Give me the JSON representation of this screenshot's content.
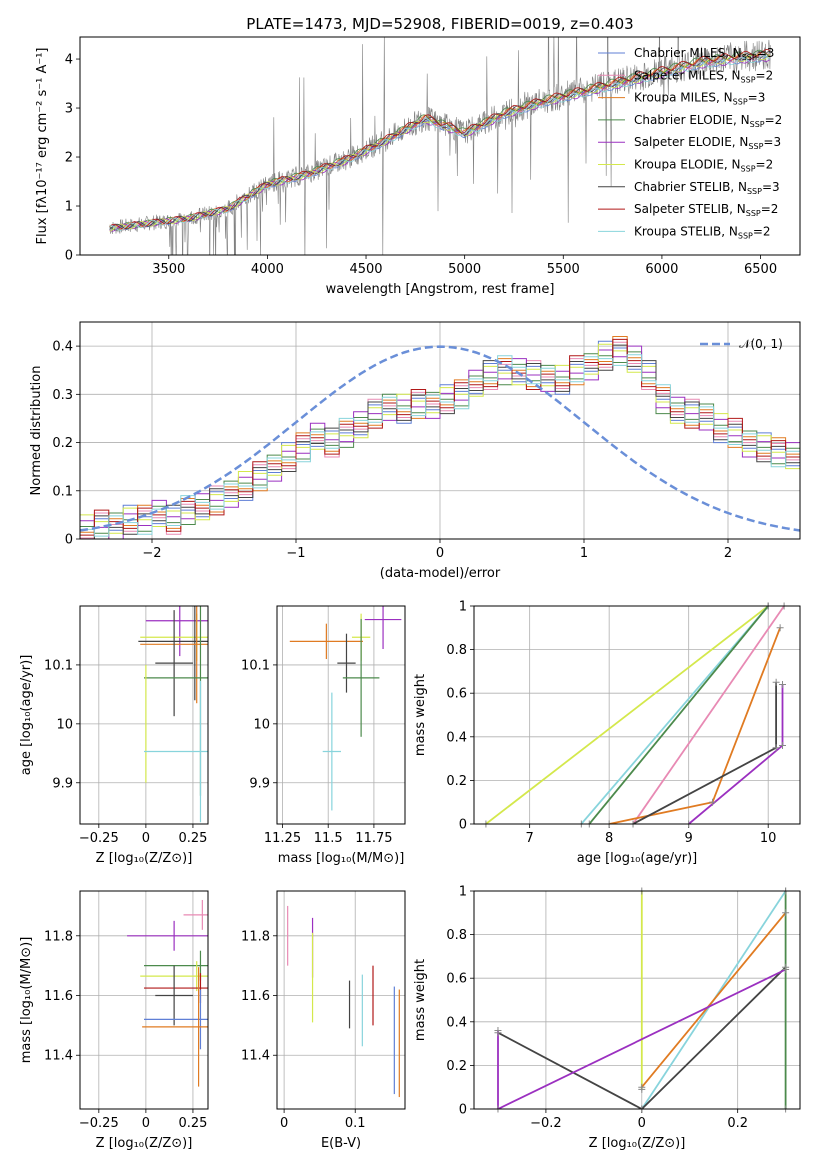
{
  "figure_title": "PLATE=1473, MJD=52908, FIBERID=0019, z=0.403",
  "colors": {
    "Chabrier MILES": "#5f7fd6",
    "Salpeter MILES": "#e88ab4",
    "Kroupa MILES": "#e07b22",
    "Chabrier ELODIE": "#4c8a4c",
    "Salpeter ELODIE": "#9b30c0",
    "Kroupa ELODIE": "#d4e84c",
    "Chabrier STELIB": "#444444",
    "Salpeter STELIB": "#b01818",
    "Kroupa STELIB": "#88d4dc",
    "data": "#808080",
    "gaussian": "#6a8fd8"
  },
  "chart_data": [
    {
      "type": "line",
      "xlabel": "wavelength [Angstrom, rest frame]",
      "ylabel": "Flux [fλ10⁻¹⁷ erg cm⁻² s⁻¹ A⁻¹]",
      "xlim": [
        3050,
        6700
      ],
      "ylim": [
        0,
        4.45
      ],
      "xticks": [
        3500,
        4000,
        4500,
        5000,
        5500,
        6000,
        6500
      ],
      "yticks": [
        0,
        1,
        2,
        3,
        4
      ],
      "grid": false,
      "legend_position": "top-right",
      "legend": [
        "Chabrier MILES, N_SSP=3",
        "Salpeter MILES, N_SSP=2",
        "Kroupa MILES, N_SSP=3",
        "Chabrier ELODIE, N_SSP=2",
        "Salpeter ELODIE, N_SSP=3",
        "Kroupa ELODIE, N_SSP=2",
        "Chabrier STELIB, N_SSP=3",
        "Salpeter STELIB, N_SSP=2",
        "Kroupa STELIB, N_SSP=2"
      ],
      "model_x": [
        3200,
        3400,
        3600,
        3800,
        4000,
        4200,
        4400,
        4600,
        4800,
        5000,
        5200,
        5400,
        5600,
        5800,
        6000,
        6200,
        6400,
        6550
      ],
      "model_y": [
        0.55,
        0.65,
        0.75,
        0.95,
        1.45,
        1.65,
        1.95,
        2.35,
        2.8,
        2.5,
        2.9,
        3.15,
        3.35,
        3.55,
        3.75,
        3.95,
        4.05,
        4.1
      ]
    },
    {
      "type": "bar",
      "xlabel": "(data-model)/error",
      "ylabel": "Normed distribution",
      "xlim": [
        -2.5,
        2.5
      ],
      "ylim": [
        0,
        0.45
      ],
      "xticks": [
        -2,
        -1,
        0,
        1,
        2
      ],
      "yticks": [
        0.0,
        0.1,
        0.2,
        0.3,
        0.4
      ],
      "grid": true,
      "legend": [
        "𝒩(0, 1)"
      ],
      "legend_position": "top-right",
      "bin_width": 0.1,
      "hist_values": [
        0.02,
        0.03,
        0.03,
        0.04,
        0.04,
        0.05,
        0.04,
        0.06,
        0.07,
        0.08,
        0.09,
        0.11,
        0.13,
        0.15,
        0.17,
        0.19,
        0.21,
        0.2,
        0.22,
        0.24,
        0.26,
        0.27,
        0.27,
        0.28,
        0.28,
        0.29,
        0.3,
        0.32,
        0.34,
        0.35,
        0.35,
        0.34,
        0.33,
        0.33,
        0.35,
        0.36,
        0.38,
        0.39,
        0.37,
        0.34,
        0.29,
        0.27,
        0.26,
        0.25,
        0.23,
        0.22,
        0.2,
        0.19,
        0.18,
        0.17,
        0.17,
        0.16,
        0.15,
        0.13,
        0.12,
        0.1,
        0.09,
        0.08,
        0.07,
        0.06
      ]
    },
    {
      "type": "scatter",
      "xlabel": "Z [log₁₀(Z/Z⊙)]",
      "ylabel": "age  [log₁₀(age/yr)]",
      "xlim": [
        -0.35,
        0.33
      ],
      "ylim": [
        9.83,
        10.2
      ],
      "xticks": [
        -0.25,
        0.0,
        0.25
      ],
      "yticks": [
        9.9,
        10.0,
        10.1
      ],
      "grid": true,
      "points": [
        {
          "x": 0.18,
          "y": 10.175,
          "xerr": 0.18,
          "yerr": 0.06,
          "series": "Salpeter ELODIE"
        },
        {
          "x": 0.27,
          "y": 10.147,
          "xerr": 0.3,
          "yerr": 0.04,
          "series": "Kroupa ELODIE"
        },
        {
          "x": 0.26,
          "y": 10.14,
          "xerr": 0.3,
          "yerr": 0.1,
          "series": "Chabrier STELIB"
        },
        {
          "x": 0.27,
          "y": 10.135,
          "xerr": 0.3,
          "yerr": 0.1,
          "series": "Kroupa MILES"
        },
        {
          "x": 0.15,
          "y": 10.103,
          "xerr": 0.1,
          "yerr": 0.09,
          "series": "Chabrier STELIB"
        },
        {
          "x": 0.29,
          "y": 10.078,
          "xerr": 0.3,
          "yerr": 0.2,
          "series": "Chabrier ELODIE"
        },
        {
          "x": 0.0,
          "y": 10.0,
          "xerr": 0.0,
          "yerr": 0.1,
          "series": "Kroupa ELODIE"
        },
        {
          "x": 0.29,
          "y": 9.953,
          "xerr": 0.3,
          "yerr": 0.12,
          "series": "Kroupa STELIB"
        }
      ]
    },
    {
      "type": "scatter",
      "xlabel": "mass [log₁₀(M/M⊙)]",
      "ylabel": "",
      "xlim": [
        11.22,
        11.92
      ],
      "ylim": [
        9.83,
        10.2
      ],
      "xticks": [
        11.25,
        11.5,
        11.75
      ],
      "yticks": [
        9.9,
        10.0,
        10.1
      ],
      "grid": true,
      "points": [
        {
          "x": 11.8,
          "y": 10.177,
          "xerr": 0.1,
          "yerr": 0.05,
          "series": "Salpeter ELODIE"
        },
        {
          "x": 11.68,
          "y": 10.147,
          "xerr": 0.05,
          "yerr": 0.04,
          "series": "Kroupa ELODIE"
        },
        {
          "x": 11.49,
          "y": 10.14,
          "xerr": 0.2,
          "yerr": 0.03,
          "series": "Kroupa MILES"
        },
        {
          "x": 11.6,
          "y": 10.103,
          "xerr": 0.05,
          "yerr": 0.05,
          "series": "Chabrier STELIB"
        },
        {
          "x": 11.68,
          "y": 10.078,
          "xerr": 0.1,
          "yerr": 0.1,
          "series": "Chabrier ELODIE"
        },
        {
          "x": 11.52,
          "y": 9.953,
          "xerr": 0.05,
          "yerr": 0.1,
          "series": "Kroupa STELIB"
        }
      ]
    },
    {
      "type": "line",
      "xlabel": "age  [log₁₀(age/yr)]",
      "ylabel": "mass weight",
      "xlim": [
        6.3,
        10.4
      ],
      "ylim": [
        0,
        1
      ],
      "xticks": [
        7,
        8,
        9,
        10
      ],
      "yticks": [
        0.0,
        0.2,
        0.4,
        0.6,
        0.8,
        1.0
      ],
      "grid": true,
      "series": [
        {
          "x": [
            6.45,
            10.0
          ],
          "y": [
            0.0,
            1.0
          ],
          "series": "Kroupa ELODIE"
        },
        {
          "x": [
            7.65,
            10.0
          ],
          "y": [
            0.0,
            1.0
          ],
          "series": "Kroupa STELIB"
        },
        {
          "x": [
            7.75,
            10.0
          ],
          "y": [
            0.0,
            1.0
          ],
          "series": "Chabrier ELODIE"
        },
        {
          "x": [
            8.3,
            10.2
          ],
          "y": [
            0.0,
            1.0
          ],
          "series": "Salpeter MILES"
        },
        {
          "x": [
            8.0,
            9.3,
            10.15
          ],
          "y": [
            0.0,
            0.1,
            0.9
          ],
          "series": "Kroupa MILES"
        },
        {
          "x": [
            8.3,
            10.1,
            10.1
          ],
          "y": [
            0.0,
            0.35,
            0.65
          ],
          "series": "Chabrier STELIB"
        },
        {
          "x": [
            9.0,
            10.18,
            10.18
          ],
          "y": [
            0.0,
            0.36,
            0.64
          ],
          "series": "Salpeter ELODIE"
        }
      ]
    },
    {
      "type": "scatter",
      "xlabel": "Z [log₁₀(Z/Z⊙)]",
      "ylabel": "mass [log₁₀(M/M⊙)]",
      "xlim": [
        -0.35,
        0.33
      ],
      "ylim": [
        11.22,
        11.95
      ],
      "xticks": [
        -0.25,
        0.0,
        0.25
      ],
      "yticks": [
        11.4,
        11.6,
        11.8
      ],
      "grid": true,
      "points": [
        {
          "x": 0.3,
          "y": 11.87,
          "xerr": 0.1,
          "yerr": 0.05,
          "series": "Salpeter MILES"
        },
        {
          "x": 0.15,
          "y": 11.8,
          "xerr": 0.25,
          "yerr": 0.05,
          "series": "Salpeter ELODIE"
        },
        {
          "x": 0.29,
          "y": 11.7,
          "xerr": 0.3,
          "yerr": 0.05,
          "series": "Chabrier ELODIE"
        },
        {
          "x": 0.27,
          "y": 11.665,
          "xerr": 0.3,
          "yerr": 0.05,
          "series": "Kroupa ELODIE"
        },
        {
          "x": 0.29,
          "y": 11.625,
          "xerr": 0.3,
          "yerr": 0.05,
          "series": "Salpeter STELIB"
        },
        {
          "x": 0.15,
          "y": 11.6,
          "xerr": 0.1,
          "yerr": 0.1,
          "series": "Chabrier STELIB"
        },
        {
          "x": 0.29,
          "y": 11.52,
          "xerr": 0.3,
          "yerr": 0.1,
          "series": "Chabrier MILES"
        },
        {
          "x": 0.28,
          "y": 11.495,
          "xerr": 0.3,
          "yerr": 0.2,
          "series": "Kroupa MILES"
        }
      ]
    },
    {
      "type": "scatter",
      "xlabel": "E(B-V)",
      "ylabel": "",
      "xlim": [
        -0.01,
        0.17
      ],
      "ylim": [
        11.22,
        11.95
      ],
      "xticks": [
        0.0,
        0.1
      ],
      "yticks": [
        11.4,
        11.6,
        11.8
      ],
      "grid": true,
      "points": [
        {
          "x": 0.005,
          "y": 11.8,
          "yerr": 0.1,
          "series": "Salpeter MILES"
        },
        {
          "x": 0.04,
          "y": 11.76,
          "yerr": 0.1,
          "series": "Salpeter ELODIE"
        },
        {
          "x": 0.04,
          "y": 11.66,
          "yerr": 0.15,
          "series": "Kroupa ELODIE"
        },
        {
          "x": 0.092,
          "y": 11.57,
          "yerr": 0.08,
          "series": "Chabrier STELIB"
        },
        {
          "x": 0.11,
          "y": 11.55,
          "yerr": 0.12,
          "series": "Kroupa STELIB"
        },
        {
          "x": 0.125,
          "y": 11.6,
          "yerr": 0.1,
          "series": "Salpeter STELIB"
        },
        {
          "x": 0.155,
          "y": 11.45,
          "yerr": 0.18,
          "series": "Chabrier MILES"
        },
        {
          "x": 0.162,
          "y": 11.44,
          "yerr": 0.18,
          "series": "Kroupa MILES"
        }
      ]
    },
    {
      "type": "line",
      "xlabel": "Z [log₁₀(Z/Z⊙)]",
      "ylabel": "mass weight",
      "xlim": [
        -0.35,
        0.33
      ],
      "ylim": [
        0,
        1
      ],
      "xticks": [
        -0.2,
        0.0,
        0.2
      ],
      "yticks": [
        0.0,
        0.2,
        0.4,
        0.6,
        0.8,
        1.0
      ],
      "grid": true,
      "series": [
        {
          "x": [
            0.0,
            0.0
          ],
          "y": [
            0.09,
            1.0
          ],
          "series": "Kroupa ELODIE"
        },
        {
          "x": [
            0.0,
            0.3
          ],
          "y": [
            0.0,
            1.0
          ],
          "series": "Kroupa STELIB"
        },
        {
          "x": [
            0.0,
            0.3
          ],
          "y": [
            0.1,
            0.9
          ],
          "series": "Kroupa MILES"
        },
        {
          "x": [
            -0.3,
            0.0,
            0.3
          ],
          "y": [
            0.35,
            0.0,
            0.65
          ],
          "series": "Chabrier STELIB"
        },
        {
          "x": [
            -0.3,
            -0.3,
            0.3
          ],
          "y": [
            0.36,
            0.0,
            0.64
          ],
          "series": "Salpeter ELODIE"
        },
        {
          "x": [
            0.3,
            0.3
          ],
          "y": [
            0.0,
            1.0
          ],
          "series": "Chabrier ELODIE"
        }
      ]
    }
  ]
}
